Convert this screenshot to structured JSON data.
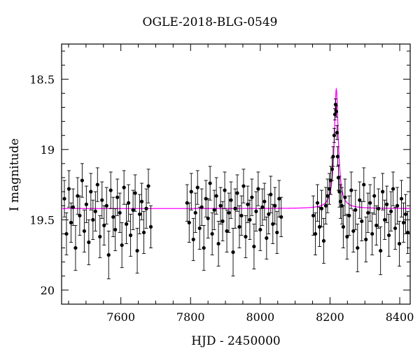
{
  "chart_data": {
    "type": "scatter",
    "title": "OGLE-2018-BLG-0549",
    "xlabel": "HJD - 2450000",
    "ylabel": "I magnitude",
    "xlim": [
      7430,
      8430
    ],
    "ylim": [
      20.1,
      18.25
    ],
    "y_inverted": true,
    "xticks": [
      7600,
      7800,
      8000,
      8200,
      8400
    ],
    "xtick_labels": [
      "7600",
      "7800",
      "8000",
      "8200",
      "8400"
    ],
    "yticks": [
      18.5,
      19,
      19.5,
      20
    ],
    "ytick_labels": [
      "18.5",
      "19",
      "19.5",
      "20"
    ],
    "grid": false,
    "series": [
      {
        "kind": "points_with_errorbars",
        "color": "#000000",
        "x": [
          7438,
          7444,
          7451,
          7457,
          7463,
          7470,
          7476,
          7482,
          7489,
          7495,
          7501,
          7508,
          7514,
          7520,
          7527,
          7533,
          7540,
          7546,
          7552,
          7559,
          7565,
          7571,
          7578,
          7584,
          7590,
          7597,
          7603,
          7609,
          7616,
          7622,
          7628,
          7635,
          7641,
          7647,
          7654,
          7660,
          7666,
          7673,
          7679,
          7686,
          7790,
          7796,
          7802,
          7808,
          7814,
          7820,
          7826,
          7832,
          7838,
          7844,
          7850,
          7856,
          7862,
          7868,
          7874,
          7880,
          7886,
          7892,
          7898,
          7904,
          7910,
          7916,
          7922,
          7928,
          7934,
          7940,
          7946,
          7952,
          7958,
          7964,
          7970,
          7976,
          7982,
          7988,
          7994,
          8000,
          8006,
          8012,
          8018,
          8024,
          8030,
          8036,
          8042,
          8048,
          8054,
          8060,
          8152,
          8158,
          8164,
          8170,
          8176,
          8182,
          8188,
          8193,
          8198,
          8202,
          8206,
          8209,
          8212,
          8214,
          8216,
          8218,
          8220,
          8222,
          8224,
          8227,
          8230,
          8234,
          8238,
          8243,
          8249,
          8255,
          8261,
          8267,
          8273,
          8279,
          8285,
          8291,
          8297,
          8303,
          8309,
          8315,
          8321,
          8327,
          8333,
          8339,
          8345,
          8351,
          8357,
          8363,
          8369,
          8375,
          8381,
          8387,
          8393,
          8399,
          8405,
          8411,
          8417,
          8423
        ],
        "y": [
          19.35,
          19.6,
          19.28,
          19.52,
          19.41,
          19.7,
          19.33,
          19.47,
          19.22,
          19.58,
          19.39,
          19.66,
          19.3,
          19.5,
          19.44,
          19.25,
          19.62,
          19.36,
          19.54,
          19.4,
          19.75,
          19.29,
          19.48,
          19.57,
          19.34,
          19.45,
          19.68,
          19.27,
          19.53,
          19.38,
          19.61,
          19.43,
          19.31,
          19.72,
          19.46,
          19.37,
          19.59,
          19.42,
          19.26,
          19.55,
          19.38,
          19.52,
          19.3,
          19.64,
          19.45,
          19.27,
          19.56,
          19.41,
          19.7,
          19.35,
          19.49,
          19.24,
          19.6,
          19.43,
          19.33,
          19.67,
          19.4,
          19.51,
          19.29,
          19.58,
          19.45,
          19.36,
          19.73,
          19.42,
          19.31,
          19.55,
          19.47,
          19.26,
          19.62,
          19.39,
          19.5,
          19.34,
          19.69,
          19.44,
          19.28,
          19.57,
          19.41,
          19.37,
          19.63,
          19.46,
          19.32,
          19.53,
          19.4,
          19.59,
          19.35,
          19.48,
          19.47,
          19.6,
          19.38,
          19.55,
          19.42,
          19.65,
          19.4,
          19.33,
          19.28,
          19.22,
          19.14,
          19.05,
          18.9,
          18.75,
          18.68,
          18.73,
          18.88,
          19.05,
          19.2,
          19.3,
          19.37,
          19.4,
          19.55,
          19.34,
          19.62,
          19.47,
          19.29,
          19.58,
          19.43,
          19.7,
          19.36,
          19.51,
          19.25,
          19.64,
          19.45,
          19.38,
          19.6,
          19.33,
          19.54,
          19.42,
          19.72,
          19.3,
          19.5,
          19.39,
          19.61,
          19.44,
          19.28,
          19.56,
          19.4,
          19.67,
          19.35,
          19.52,
          19.46,
          19.59
        ],
        "yerr": [
          0.13,
          0.15,
          0.13,
          0.14,
          0.13,
          0.16,
          0.13,
          0.14,
          0.12,
          0.15,
          0.13,
          0.16,
          0.13,
          0.14,
          0.14,
          0.12,
          0.15,
          0.13,
          0.14,
          0.13,
          0.17,
          0.13,
          0.14,
          0.15,
          0.13,
          0.14,
          0.16,
          0.12,
          0.14,
          0.13,
          0.15,
          0.14,
          0.13,
          0.16,
          0.14,
          0.13,
          0.15,
          0.14,
          0.12,
          0.15,
          0.13,
          0.14,
          0.13,
          0.15,
          0.14,
          0.12,
          0.15,
          0.13,
          0.16,
          0.13,
          0.14,
          0.12,
          0.15,
          0.14,
          0.13,
          0.16,
          0.13,
          0.14,
          0.13,
          0.15,
          0.14,
          0.13,
          0.17,
          0.14,
          0.13,
          0.15,
          0.14,
          0.12,
          0.15,
          0.13,
          0.14,
          0.13,
          0.16,
          0.14,
          0.12,
          0.15,
          0.13,
          0.13,
          0.15,
          0.14,
          0.13,
          0.14,
          0.13,
          0.15,
          0.13,
          0.14,
          0.14,
          0.15,
          0.13,
          0.14,
          0.13,
          0.16,
          0.13,
          0.12,
          0.11,
          0.1,
          0.08,
          0.07,
          0.05,
          0.04,
          0.04,
          0.04,
          0.05,
          0.07,
          0.09,
          0.11,
          0.12,
          0.13,
          0.15,
          0.13,
          0.16,
          0.14,
          0.13,
          0.15,
          0.14,
          0.17,
          0.13,
          0.14,
          0.12,
          0.16,
          0.14,
          0.13,
          0.15,
          0.13,
          0.14,
          0.14,
          0.17,
          0.13,
          0.14,
          0.13,
          0.15,
          0.14,
          0.12,
          0.15,
          0.13,
          0.16,
          0.13,
          0.14,
          0.14,
          0.15
        ]
      },
      {
        "kind": "model_line",
        "color": "#ff00ff",
        "baseline": 19.42,
        "peak_x": 8218,
        "peak_y": 18.57,
        "tE": 7
      }
    ]
  }
}
